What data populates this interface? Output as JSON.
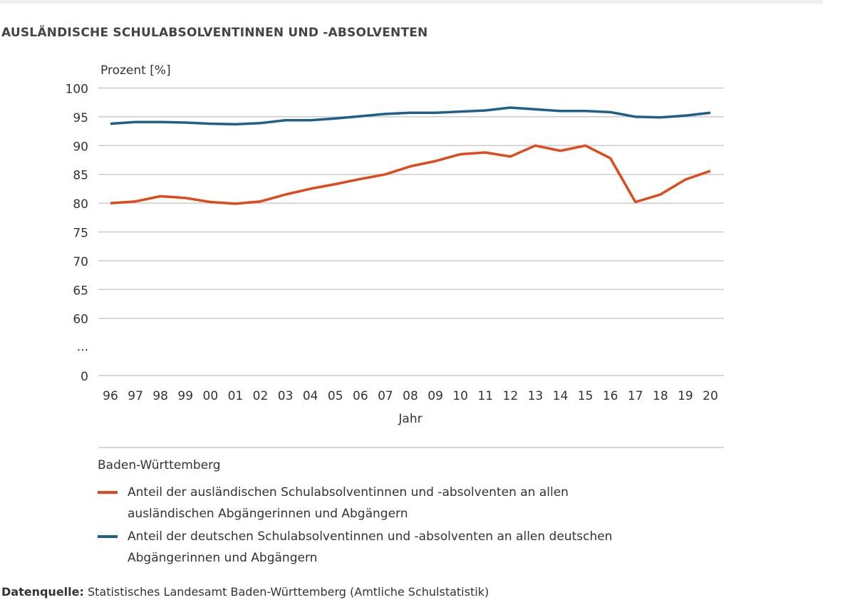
{
  "title": "AUSLÄNDISCHE SCHULABSOLVENTINNEN UND -ABSOLVENTEN",
  "chart_data": {
    "type": "line",
    "title": "AUSLÄNDISCHE SCHULABSOLVENTINNEN UND -ABSOLVENTEN",
    "ylabel": "Prozent [%]",
    "xlabel": "Jahr",
    "y_axis_break": true,
    "yticks": [
      "100",
      "95",
      "90",
      "85",
      "80",
      "75",
      "70",
      "65",
      "60",
      "...",
      "0"
    ],
    "ylim": [
      60,
      100
    ],
    "grid": true,
    "categories": [
      "96",
      "97",
      "98",
      "99",
      "00",
      "01",
      "02",
      "03",
      "04",
      "05",
      "06",
      "07",
      "08",
      "09",
      "10",
      "11",
      "12",
      "13",
      "14",
      "15",
      "16",
      "17",
      "18",
      "19",
      "20"
    ],
    "series": [
      {
        "name": "Anteil der ausländischen Schulabsolventinnen und -absolventen an allen ausländischen Abgängerinnen und Abgängern",
        "color": "#e0491b",
        "values": [
          80.0,
          80.3,
          81.2,
          80.9,
          80.2,
          79.9,
          80.3,
          81.5,
          82.5,
          83.3,
          84.2,
          85.0,
          86.4,
          87.3,
          88.5,
          88.8,
          88.1,
          90.0,
          89.1,
          90.0,
          87.8,
          80.2,
          81.5,
          84.1,
          85.6
        ]
      },
      {
        "name": "Anteil der deutschen Schulabsolventinnen und -absolventen an allen deutschen Abgängerinnen und Abgängern",
        "color": "#1f5f8b",
        "values": [
          93.8,
          94.1,
          94.1,
          94.0,
          93.8,
          93.7,
          93.9,
          94.4,
          94.4,
          94.7,
          95.1,
          95.5,
          95.7,
          95.7,
          95.9,
          96.1,
          96.6,
          96.3,
          96.0,
          96.0,
          95.8,
          95.0,
          94.9,
          95.2,
          95.7
        ]
      }
    ],
    "legend_title": "Baden-Württemberg",
    "legend_placement": "bottom"
  },
  "source": {
    "label": "Datenquelle:",
    "text": " Statistisches Landesamt Baden-Württemberg (Amtliche Schulstatistik)"
  }
}
